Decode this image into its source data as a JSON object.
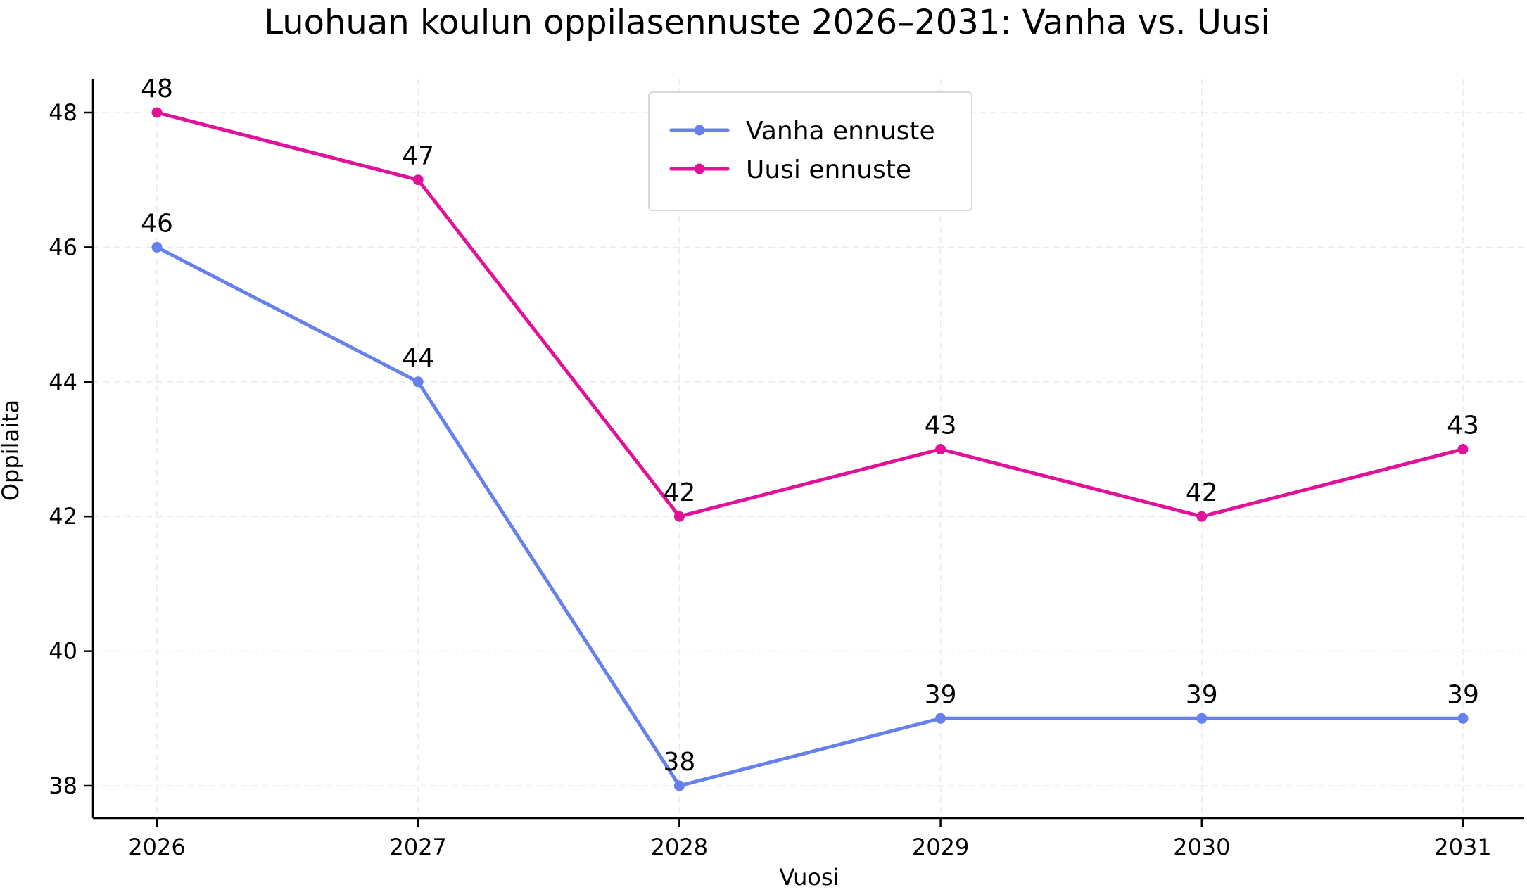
{
  "chart_data": {
    "type": "line",
    "title": "Luohuan koulun oppilasennuste 2026–2031: Vanha vs. Uusi",
    "xlabel": "Vuosi",
    "ylabel": "Oppilaita",
    "categories": [
      "2026",
      "2027",
      "2028",
      "2029",
      "2030",
      "2031"
    ],
    "x": [
      2026,
      2027,
      2028,
      2029,
      2030,
      2031
    ],
    "ylim": [
      37.5,
      48.5
    ],
    "yticks": [
      38,
      40,
      42,
      44,
      46,
      48
    ],
    "grid": true,
    "legend_position": "top-center",
    "series": [
      {
        "name": "Vanha ennuste",
        "color": "#6680ee",
        "values": [
          46,
          44,
          38,
          39,
          39,
          39
        ],
        "labels": [
          "46",
          "44",
          "38",
          "39",
          "39",
          "39"
        ]
      },
      {
        "name": "Uusi ennuste",
        "color": "#e0129a",
        "values": [
          48,
          47,
          42,
          43,
          42,
          43
        ],
        "labels": [
          "48",
          "47",
          "42",
          "43",
          "42",
          "43"
        ]
      }
    ]
  }
}
